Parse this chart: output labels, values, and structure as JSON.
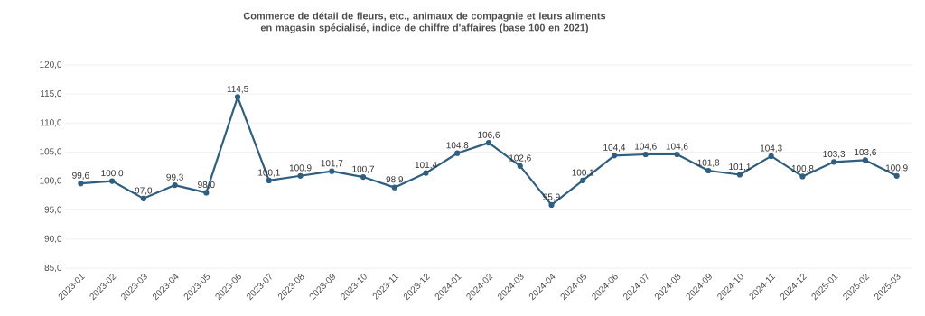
{
  "chart_data": {
    "type": "line",
    "title": "Commerce de détail de fleurs, etc., animaux de compagnie et leurs aliments en magasin spécialisé, indice de chiffre d'affaires (base 100 en 2021)",
    "categories": [
      "2023-01",
      "2023-02",
      "2023-03",
      "2023-04",
      "2023-05",
      "2023-06",
      "2023-07",
      "2023-08",
      "2023-09",
      "2023-10",
      "2023-11",
      "2023-12",
      "2024-01",
      "2024-02",
      "2024-03",
      "2024-04",
      "2024-05",
      "2024-06",
      "2024-07",
      "2024-08",
      "2024-09",
      "2024-10",
      "2024-11",
      "2024-12",
      "2025-01",
      "2025-02",
      "2025-03"
    ],
    "series": [
      {
        "color": "#2e5f80",
        "values": [
          99.6,
          100.0,
          97.0,
          99.3,
          98.0,
          114.5,
          100.1,
          100.9,
          101.7,
          100.7,
          98.9,
          101.4,
          104.8,
          106.6,
          102.6,
          95.9,
          100.1,
          104.4,
          104.6,
          104.6,
          101.8,
          101.1,
          104.3,
          100.8,
          103.3,
          103.6,
          100.9
        ],
        "value_labels": [
          "99,6",
          "100,0",
          "97,0",
          "99,3",
          "98,0",
          "114,5",
          "100,1",
          "100,9",
          "101,7",
          "100,7",
          "98,9",
          "101,4",
          "104,8",
          "106,6",
          "102,6",
          "95,9",
          "100,1",
          "104,4",
          "104,6",
          "104,6",
          "101,8",
          "101,1",
          "104,3",
          "100,8",
          "103,3",
          "103,6",
          "100,9"
        ]
      }
    ],
    "ylim": [
      85,
      120
    ],
    "yticks": [
      {
        "value": 85,
        "label": "85,0"
      },
      {
        "value": 90,
        "label": "90,0"
      },
      {
        "value": 95,
        "label": "95,0"
      },
      {
        "value": 100,
        "label": "100,0"
      },
      {
        "value": 105,
        "label": "105,0"
      },
      {
        "value": 110,
        "label": "110,0"
      },
      {
        "value": 115,
        "label": "115,0"
      },
      {
        "value": 120,
        "label": "120,0"
      }
    ],
    "grid": "y",
    "marker": "circle",
    "line_style": "solid"
  }
}
